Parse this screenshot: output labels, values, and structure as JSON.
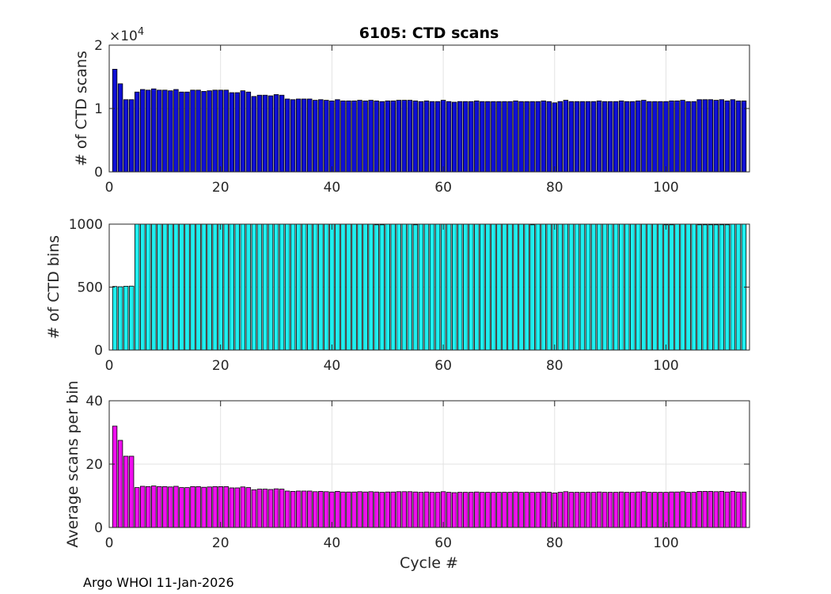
{
  "figure": {
    "title": "6105: CTD scans",
    "footer": "Argo WHOI 11-Jan-2026",
    "xlabel": "Cycle #"
  },
  "chart_data": [
    {
      "type": "bar",
      "ylabel": "# of CTD scans",
      "exponent_label": "×10",
      "exponent_power": "4",
      "color": "#0f0fd6",
      "xlim": [
        0,
        115
      ],
      "ylim": [
        0,
        20000
      ],
      "xticks": [
        0,
        20,
        40,
        60,
        80,
        100
      ],
      "yticks": [
        0,
        10000,
        20000
      ],
      "ytick_labels": [
        "0",
        "1",
        "2"
      ],
      "grid": true,
      "x": [
        1,
        2,
        3,
        4,
        5,
        6,
        7,
        8,
        9,
        10,
        11,
        12,
        13,
        14,
        15,
        16,
        17,
        18,
        19,
        20,
        21,
        22,
        23,
        24,
        25,
        26,
        27,
        28,
        29,
        30,
        31,
        32,
        33,
        34,
        35,
        36,
        37,
        38,
        39,
        40,
        41,
        42,
        43,
        44,
        45,
        46,
        47,
        48,
        49,
        50,
        51,
        52,
        53,
        54,
        55,
        56,
        57,
        58,
        59,
        60,
        61,
        62,
        63,
        64,
        65,
        66,
        67,
        68,
        69,
        70,
        71,
        72,
        73,
        74,
        75,
        76,
        77,
        78,
        79,
        80,
        81,
        82,
        83,
        84,
        85,
        86,
        87,
        88,
        89,
        90,
        91,
        92,
        93,
        94,
        95,
        96,
        97,
        98,
        99,
        100,
        101,
        102,
        103,
        104,
        105,
        106,
        107,
        108,
        109,
        110,
        111,
        112,
        113,
        114
      ],
      "values": [
        16200,
        13900,
        11400,
        11400,
        12600,
        13000,
        12900,
        13100,
        12900,
        12900,
        12800,
        13000,
        12600,
        12600,
        12900,
        12900,
        12700,
        12800,
        12900,
        12900,
        12900,
        12500,
        12500,
        12800,
        12600,
        11900,
        12100,
        12100,
        12000,
        12200,
        12100,
        11500,
        11400,
        11500,
        11500,
        11500,
        11300,
        11400,
        11300,
        11200,
        11400,
        11200,
        11200,
        11200,
        11300,
        11200,
        11300,
        11200,
        11100,
        11200,
        11200,
        11300,
        11300,
        11300,
        11200,
        11100,
        11200,
        11100,
        11100,
        11300,
        11100,
        11000,
        11100,
        11100,
        11100,
        11200,
        11100,
        11100,
        11100,
        11100,
        11100,
        11100,
        11200,
        11100,
        11100,
        11100,
        11100,
        11200,
        11100,
        10900,
        11100,
        11300,
        11100,
        11100,
        11100,
        11100,
        11100,
        11200,
        11100,
        11100,
        11100,
        11200,
        11100,
        11100,
        11200,
        11300,
        11100,
        11100,
        11100,
        11100,
        11200,
        11200,
        11300,
        11100,
        11100,
        11400,
        11400,
        11400,
        11300,
        11400,
        11200,
        11400,
        11200,
        11200
      ]
    },
    {
      "type": "bar",
      "ylabel": "# of CTD bins",
      "color": "#1fefef",
      "xlim": [
        0,
        115
      ],
      "ylim": [
        0,
        1000
      ],
      "xticks": [
        0,
        20,
        40,
        60,
        80,
        100
      ],
      "yticks": [
        0,
        500,
        1000
      ],
      "ytick_labels": [
        "0",
        "500",
        "1000"
      ],
      "grid": true,
      "x": [
        1,
        2,
        3,
        4,
        5,
        6,
        7,
        8,
        9,
        10,
        11,
        12,
        13,
        14,
        15,
        16,
        17,
        18,
        19,
        20,
        21,
        22,
        23,
        24,
        25,
        26,
        27,
        28,
        29,
        30,
        31,
        32,
        33,
        34,
        35,
        36,
        37,
        38,
        39,
        40,
        41,
        42,
        43,
        44,
        45,
        46,
        47,
        48,
        49,
        50,
        51,
        52,
        53,
        54,
        55,
        56,
        57,
        58,
        59,
        60,
        61,
        62,
        63,
        64,
        65,
        66,
        67,
        68,
        69,
        70,
        71,
        72,
        73,
        74,
        75,
        76,
        77,
        78,
        79,
        80,
        81,
        82,
        83,
        84,
        85,
        86,
        87,
        88,
        89,
        90,
        91,
        92,
        93,
        94,
        95,
        96,
        97,
        98,
        99,
        100,
        101,
        102,
        103,
        104,
        105,
        106,
        107,
        108,
        109,
        110,
        111,
        112,
        113,
        114
      ],
      "values": [
        505,
        503,
        507,
        508,
        1000,
        1000,
        1000,
        1000,
        1000,
        1000,
        1000,
        1000,
        1000,
        1000,
        1000,
        1000,
        1000,
        1000,
        1000,
        1000,
        1000,
        1000,
        1000,
        1000,
        1000,
        1000,
        1000,
        1000,
        1000,
        1000,
        1000,
        1000,
        1000,
        1000,
        1000,
        1000,
        1000,
        1000,
        1000,
        1000,
        1000,
        1000,
        1000,
        1000,
        1000,
        1000,
        1000,
        995,
        995,
        1000,
        1000,
        1000,
        1000,
        1000,
        995,
        1000,
        1000,
        1000,
        1000,
        1000,
        1000,
        1000,
        1000,
        1000,
        1000,
        1000,
        1000,
        1000,
        1000,
        1000,
        1000,
        1000,
        1000,
        1000,
        1000,
        995,
        1000,
        1000,
        1000,
        1000,
        1000,
        1000,
        1000,
        1000,
        1000,
        1000,
        1000,
        1000,
        1000,
        1000,
        1000,
        1000,
        1000,
        1000,
        1000,
        1000,
        1000,
        1000,
        1000,
        995,
        995,
        1000,
        1000,
        1000,
        1000,
        995,
        995,
        995,
        995,
        995,
        995,
        1000,
        1000,
        1000
      ]
    },
    {
      "type": "bar",
      "ylabel": "Average scans per bin",
      "color": "#ef0fef",
      "xlim": [
        0,
        115
      ],
      "ylim": [
        0,
        40
      ],
      "xticks": [
        0,
        20,
        40,
        60,
        80,
        100
      ],
      "yticks": [
        0,
        20,
        40
      ],
      "ytick_labels": [
        "0",
        "20",
        "40"
      ],
      "grid": true,
      "x": [
        1,
        2,
        3,
        4,
        5,
        6,
        7,
        8,
        9,
        10,
        11,
        12,
        13,
        14,
        15,
        16,
        17,
        18,
        19,
        20,
        21,
        22,
        23,
        24,
        25,
        26,
        27,
        28,
        29,
        30,
        31,
        32,
        33,
        34,
        35,
        36,
        37,
        38,
        39,
        40,
        41,
        42,
        43,
        44,
        45,
        46,
        47,
        48,
        49,
        50,
        51,
        52,
        53,
        54,
        55,
        56,
        57,
        58,
        59,
        60,
        61,
        62,
        63,
        64,
        65,
        66,
        67,
        68,
        69,
        70,
        71,
        72,
        73,
        74,
        75,
        76,
        77,
        78,
        79,
        80,
        81,
        82,
        83,
        84,
        85,
        86,
        87,
        88,
        89,
        90,
        91,
        92,
        93,
        94,
        95,
        96,
        97,
        98,
        99,
        100,
        101,
        102,
        103,
        104,
        105,
        106,
        107,
        108,
        109,
        110,
        111,
        112,
        113,
        114
      ],
      "values": [
        32,
        27.5,
        22.5,
        22.5,
        12.6,
        13,
        12.9,
        13.1,
        12.9,
        12.9,
        12.8,
        13,
        12.6,
        12.6,
        12.9,
        12.9,
        12.7,
        12.8,
        12.9,
        12.9,
        12.9,
        12.5,
        12.5,
        12.8,
        12.6,
        11.9,
        12.1,
        12.1,
        12,
        12.2,
        12.1,
        11.5,
        11.4,
        11.5,
        11.5,
        11.5,
        11.3,
        11.4,
        11.3,
        11.2,
        11.4,
        11.2,
        11.2,
        11.2,
        11.3,
        11.2,
        11.3,
        11.2,
        11.1,
        11.2,
        11.2,
        11.3,
        11.3,
        11.3,
        11.2,
        11.1,
        11.2,
        11.1,
        11.1,
        11.3,
        11.1,
        11,
        11.1,
        11.1,
        11.1,
        11.2,
        11.1,
        11.1,
        11.1,
        11.1,
        11.1,
        11.1,
        11.2,
        11.1,
        11.1,
        11.1,
        11.1,
        11.2,
        11.1,
        10.9,
        11.1,
        11.3,
        11.1,
        11.1,
        11.1,
        11.1,
        11.1,
        11.2,
        11.1,
        11.1,
        11.1,
        11.2,
        11.1,
        11.1,
        11.2,
        11.3,
        11.1,
        11.1,
        11.1,
        11.1,
        11.2,
        11.2,
        11.3,
        11.1,
        11.1,
        11.4,
        11.4,
        11.4,
        11.3,
        11.4,
        11.2,
        11.4,
        11.2,
        11.2
      ]
    }
  ]
}
